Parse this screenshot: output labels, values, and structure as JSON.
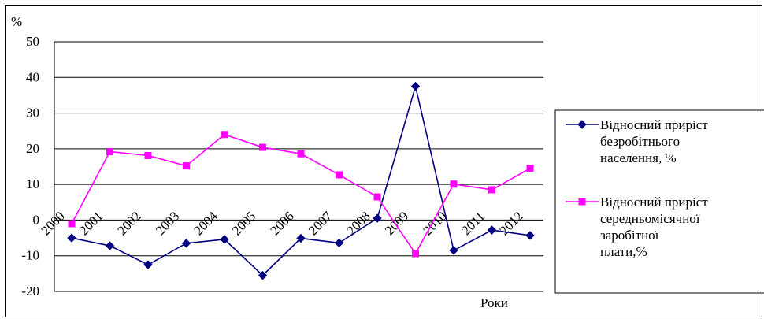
{
  "chart_data": {
    "type": "line",
    "ylabel": "%",
    "xlabel": "Роки",
    "ylim": [
      -20,
      50
    ],
    "yticks": [
      -20,
      -10,
      0,
      10,
      20,
      30,
      40,
      50
    ],
    "grid": true,
    "legend_position": "right",
    "categories": [
      "2000",
      "2001",
      "2002",
      "2003",
      "2004",
      "2005",
      "2006",
      "2007",
      "2008",
      "2009",
      "2010",
      "2011",
      "2012"
    ],
    "series": [
      {
        "name": "Відносний приріст безробітнього населення, %",
        "legend_lines": [
          "Відносний приріст",
          "безробітнього",
          "населення, %"
        ],
        "color": "#000080",
        "marker": "diamond",
        "values": [
          -5.0,
          -7.2,
          -12.5,
          -6.5,
          -5.4,
          -15.5,
          -5.1,
          -6.4,
          0.5,
          37.5,
          -8.5,
          -2.8,
          -4.3
        ]
      },
      {
        "name": "Відносний приріст середньомісячної заробітної плати,%",
        "legend_lines": [
          "Відносний приріст",
          "середньомісячної",
          "заробітної",
          "плати,%"
        ],
        "color": "#ff00ff",
        "marker": "square",
        "values": [
          -1.0,
          19.2,
          18.1,
          15.2,
          24.0,
          20.4,
          18.6,
          12.7,
          6.5,
          -9.4,
          10.1,
          8.5,
          14.5
        ]
      }
    ]
  }
}
